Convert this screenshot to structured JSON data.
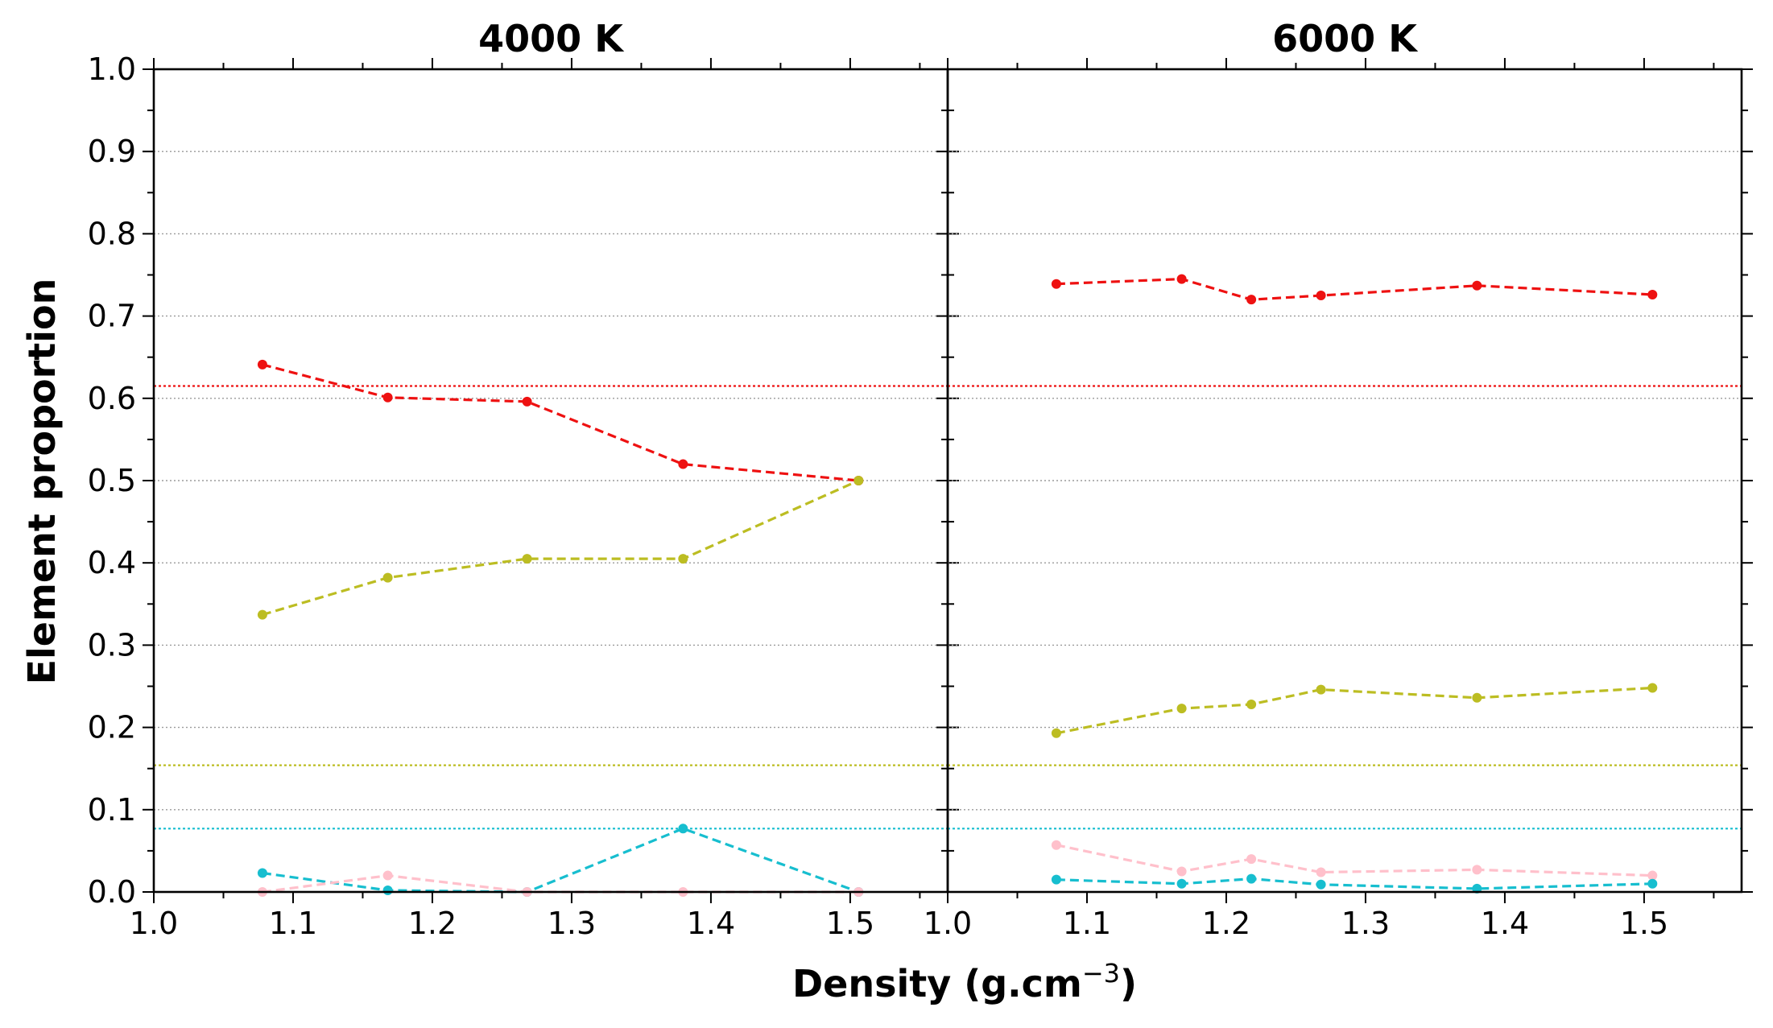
{
  "figure": {
    "xlabel_main": "Density (g.cm",
    "xlabel_sup": "−3",
    "xlabel_end": ")",
    "ylabel": "Element proportion"
  },
  "chart_data": [
    {
      "type": "line",
      "title": "4000 K",
      "xlabel": "Density (g.cm−3)",
      "ylabel": "Element proportion",
      "xlim": [
        1.0,
        1.57
      ],
      "ylim": [
        0.0,
        1.0
      ],
      "xticks": [
        "1.0",
        "1.1",
        "1.2",
        "1.3",
        "1.4",
        "1.5"
      ],
      "yticks": [
        "0.0",
        "0.1",
        "0.2",
        "0.3",
        "0.4",
        "0.5",
        "0.6",
        "0.7",
        "0.8",
        "0.9",
        "1.0"
      ],
      "grid": "horizontal dotted",
      "x": [
        1.078,
        1.168,
        1.268,
        1.38,
        1.506
      ],
      "series": [
        {
          "color": "#ee1111",
          "values": [
            0.641,
            0.601,
            0.596,
            0.52,
            0.5
          ]
        },
        {
          "color": "#bcbd22",
          "values": [
            0.337,
            0.382,
            0.405,
            0.405,
            0.5
          ]
        },
        {
          "color": "#17becf",
          "values": [
            0.023,
            0.002,
            0.0,
            0.077,
            0.0
          ]
        },
        {
          "color": "#ffc0cb",
          "values": [
            0.0,
            0.02,
            0.0,
            0.0,
            0.0
          ]
        }
      ],
      "reference_lines": [
        {
          "y": 0.615,
          "color": "#ee1111"
        },
        {
          "y": 0.154,
          "color": "#bcbd22"
        },
        {
          "y": 0.077,
          "color": "#17becf"
        }
      ]
    },
    {
      "type": "line",
      "title": "6000 K",
      "xlabel": "Density (g.cm−3)",
      "ylabel": "Element proportion",
      "xlim": [
        1.0,
        1.57
      ],
      "ylim": [
        0.0,
        1.0
      ],
      "xticks": [
        "1.0",
        "1.1",
        "1.2",
        "1.3",
        "1.4",
        "1.5"
      ],
      "yticks": [
        "0.0",
        "0.1",
        "0.2",
        "0.3",
        "0.4",
        "0.5",
        "0.6",
        "0.7",
        "0.8",
        "0.9",
        "1.0"
      ],
      "grid": "horizontal dotted",
      "x": [
        1.078,
        1.168,
        1.218,
        1.268,
        1.38,
        1.506
      ],
      "series": [
        {
          "color": "#ee1111",
          "values": [
            0.739,
            0.745,
            0.72,
            0.725,
            0.737,
            0.726
          ]
        },
        {
          "color": "#bcbd22",
          "values": [
            0.193,
            0.223,
            0.228,
            0.246,
            0.236,
            0.248
          ]
        },
        {
          "color": "#ffc0cb",
          "values": [
            0.057,
            0.025,
            0.04,
            0.024,
            0.027,
            0.02
          ]
        },
        {
          "color": "#17becf",
          "values": [
            0.015,
            0.01,
            0.016,
            0.009,
            0.004,
            0.01
          ]
        }
      ],
      "reference_lines": [
        {
          "y": 0.615,
          "color": "#ee1111"
        },
        {
          "y": 0.154,
          "color": "#bcbd22"
        },
        {
          "y": 0.077,
          "color": "#17becf"
        }
      ]
    }
  ]
}
